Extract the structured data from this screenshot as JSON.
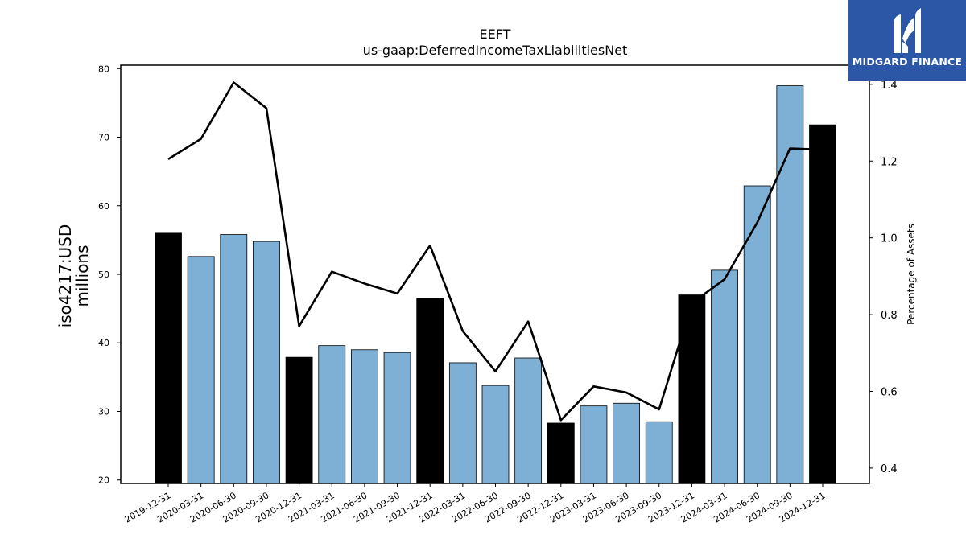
{
  "brand": {
    "name": "MIDGARD FINANCE",
    "colors": {
      "background": "#2b57a6",
      "text": "#ffffff"
    }
  },
  "chart_data": {
    "type": "bar",
    "title": "EEFT",
    "subtitle": "us-gaap:DeferredIncomeTaxLiabilitiesNet",
    "ylabel": "iso4217:USD\nmillions",
    "y2label": "Percentage of Assets",
    "ylim": [
      19.5,
      80.5
    ],
    "y2lim": [
      0.36,
      1.45
    ],
    "yticks": [
      20,
      30,
      40,
      50,
      60,
      70,
      80
    ],
    "y2ticks": [
      0.4,
      0.6,
      0.8,
      1.0,
      1.2,
      1.4
    ],
    "categories": [
      "2019-12-31",
      "2020-03-31",
      "2020-06-30",
      "2020-09-30",
      "2020-12-31",
      "2021-03-31",
      "2021-06-30",
      "2021-09-30",
      "2021-12-31",
      "2022-03-31",
      "2022-06-30",
      "2022-09-30",
      "2022-12-31",
      "2023-03-31",
      "2023-06-30",
      "2023-09-30",
      "2023-12-31",
      "2024-03-31",
      "2024-06-30",
      "2024-09-30",
      "2024-12-31"
    ],
    "series": [
      {
        "type": "bar",
        "axis": "left",
        "values": [
          56.0,
          52.6,
          55.8,
          54.8,
          37.9,
          39.6,
          39.0,
          38.6,
          46.5,
          37.1,
          33.8,
          37.8,
          28.3,
          30.8,
          31.2,
          28.5,
          47.0,
          50.6,
          62.9,
          77.5,
          71.8
        ],
        "annual": [
          true,
          false,
          false,
          false,
          true,
          false,
          false,
          false,
          true,
          false,
          false,
          false,
          true,
          false,
          false,
          false,
          true,
          false,
          false,
          false,
          true
        ]
      },
      {
        "type": "line",
        "axis": "right",
        "values": [
          1.205,
          1.258,
          1.405,
          1.338,
          0.77,
          0.912,
          0.881,
          0.855,
          0.98,
          0.757,
          0.652,
          0.782,
          0.525,
          0.613,
          0.597,
          0.553,
          0.83,
          0.892,
          1.04,
          1.233,
          1.23
        ]
      }
    ],
    "colors": {
      "annual_bar": "#000000",
      "quarter_bar": "#7eb0d5",
      "line": "#000000"
    },
    "grid": false,
    "legend": "none"
  }
}
